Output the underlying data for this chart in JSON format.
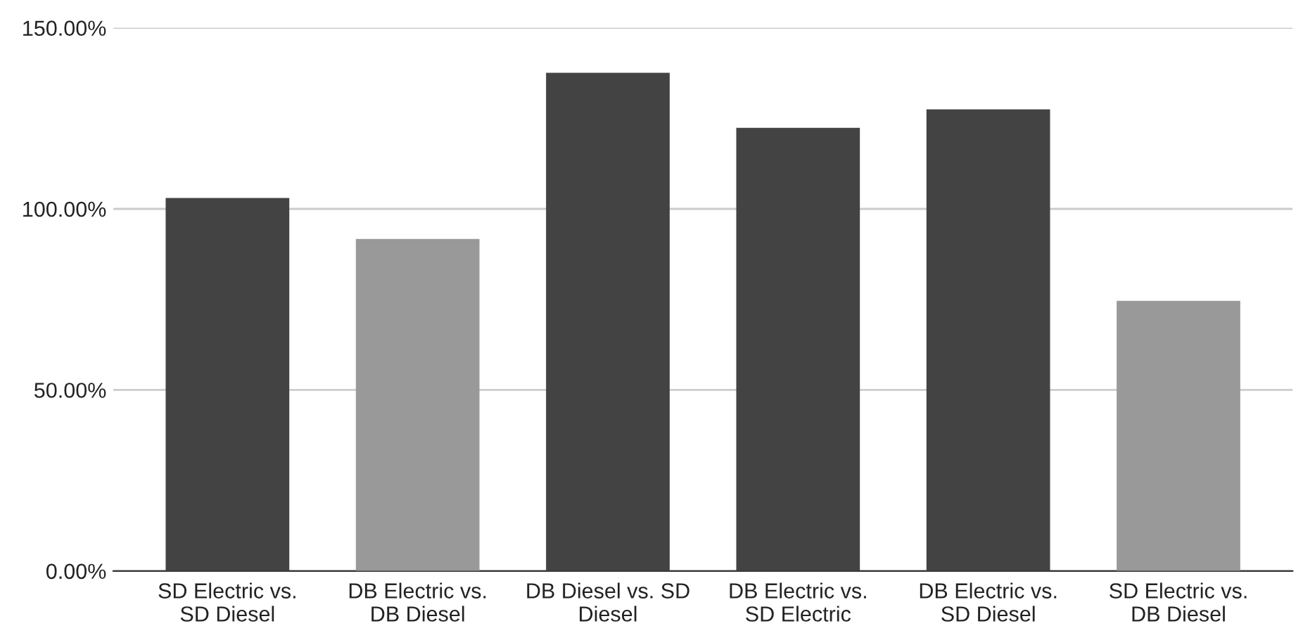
{
  "chart_data": {
    "type": "bar",
    "categories": [
      "SD Electric vs.\nSD Diesel",
      "DB Electric vs.\nDB Diesel",
      "DB Diesel vs. SD\nDiesel",
      "DB Electric vs.\nSD Electric",
      "DB Electric vs.\nSD Diesel",
      "SD Electric vs.\nDB Diesel"
    ],
    "values": [
      103,
      91.7,
      137.6,
      122.4,
      127.5,
      74.6
    ],
    "colors": [
      "#434343",
      "#999999",
      "#434343",
      "#434343",
      "#434343",
      "#999999"
    ],
    "ylim": [
      0,
      150
    ],
    "yticks": [
      {
        "value": 0,
        "label": "0.00%"
      },
      {
        "value": 50,
        "label": "50.00%"
      },
      {
        "value": 100,
        "label": "100.00%"
      },
      {
        "value": 150,
        "label": "150.00%"
      }
    ],
    "grid": "y"
  }
}
